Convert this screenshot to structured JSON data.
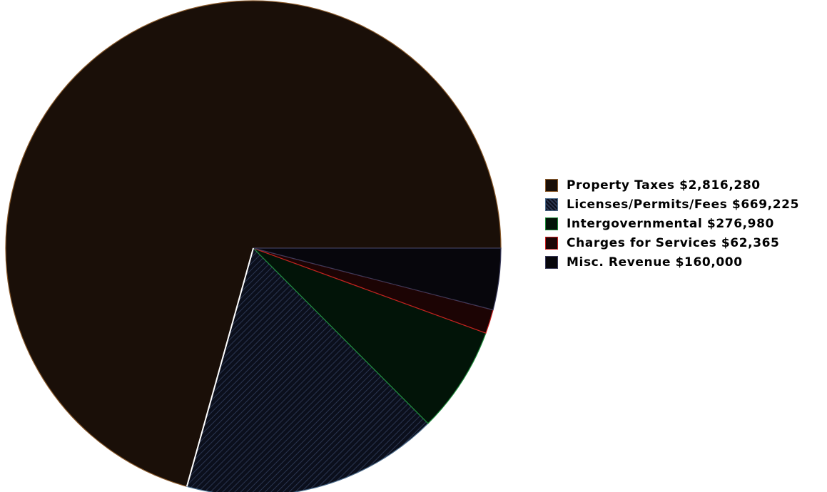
{
  "chart_data": {
    "type": "pie",
    "slices": [
      {
        "label": "Property Taxes $2,816,280",
        "value": 2816280,
        "color": "#1a0f08",
        "edge": "#8a5a2b",
        "pattern": false
      },
      {
        "label": "Licenses/Permits/Fees $669,225",
        "value": 669225,
        "color": "#0b0f1c",
        "edge": "#4a6a8a",
        "pattern": true
      },
      {
        "label": "Intergovernmental $276,980",
        "value": 276980,
        "color": "#021408",
        "edge": "#1e8a3a",
        "pattern": false
      },
      {
        "label": "Charges for Services $62,365",
        "value": 62365,
        "color": "#1c0404",
        "edge": "#c81e1e",
        "pattern": false
      },
      {
        "label": "Misc. Revenue $160,000",
        "value": 160000,
        "color": "#07060c",
        "edge": "#3a3a5a",
        "pattern": false
      }
    ],
    "legend_position": "right"
  }
}
